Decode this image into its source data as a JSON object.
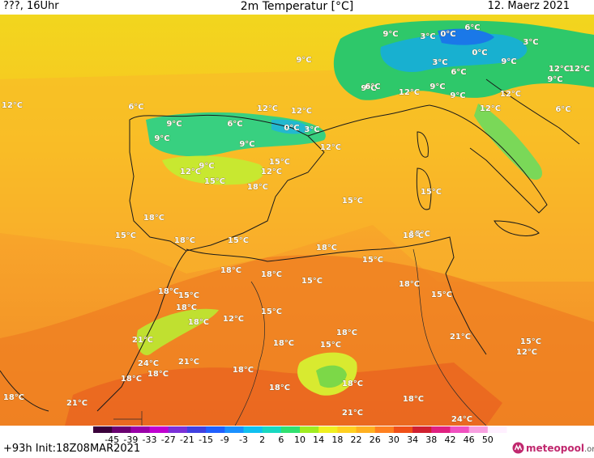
{
  "header": {
    "left": "???, 16Uhr",
    "title": "2m Temperatur [°C]",
    "date": "12. Maerz 2021"
  },
  "footer": {
    "run": "+93h  Init:18Z08MAR2021",
    "brand": "meteopool",
    "brand_domain": ".org"
  },
  "scale": {
    "ticks": [
      "-45",
      "-39",
      "-33",
      "-27",
      "-21",
      "-15",
      "-9",
      "-3",
      "2",
      "6",
      "10",
      "14",
      "18",
      "22",
      "26",
      "30",
      "34",
      "38",
      "42",
      "46",
      "50"
    ],
    "colors": [
      "#3a003a",
      "#6a0070",
      "#9a00a8",
      "#c000d0",
      "#7a30d8",
      "#4040e0",
      "#2060ff",
      "#1a90ff",
      "#10c0f0",
      "#18d8c0",
      "#30e070",
      "#a0ec20",
      "#f0f020",
      "#ffd020",
      "#ffb020",
      "#ff8020",
      "#f05018",
      "#d02030",
      "#e02080",
      "#f050c0",
      "#f8a0e0",
      "#fff0ff"
    ]
  },
  "labels": [
    {
      "text": "9°C"
    },
    {
      "text": "3°C"
    },
    {
      "text": "0°C"
    },
    {
      "text": "6°C"
    },
    {
      "text": "3°C"
    },
    {
      "text": "9°C"
    },
    {
      "text": "0°C"
    },
    {
      "text": "3°C"
    },
    {
      "text": "6°C"
    },
    {
      "text": "9°C"
    },
    {
      "text": "9°C"
    },
    {
      "text": "6°C"
    },
    {
      "text": "9°C"
    },
    {
      "text": "9°C"
    },
    {
      "text": "12°C"
    },
    {
      "text": "9°C"
    },
    {
      "text": "12°C"
    },
    {
      "text": "12°C"
    },
    {
      "text": "12°C"
    },
    {
      "text": "6°C"
    },
    {
      "text": "12°C"
    },
    {
      "text": "12°C"
    },
    {
      "text": "12°C"
    },
    {
      "text": "6°C"
    },
    {
      "text": "9°C"
    },
    {
      "text": "6°C"
    },
    {
      "text": "0°C"
    },
    {
      "text": "3°C"
    },
    {
      "text": "9°C"
    },
    {
      "text": "9°C"
    },
    {
      "text": "12°C"
    },
    {
      "text": "12°C"
    },
    {
      "text": "9°C"
    },
    {
      "text": "15°C"
    },
    {
      "text": "12°C"
    },
    {
      "text": "15°C"
    },
    {
      "text": "18°C"
    },
    {
      "text": "12°C"
    },
    {
      "text": "15°C"
    },
    {
      "text": "15°C"
    },
    {
      "text": "18°C"
    },
    {
      "text": "15°C"
    },
    {
      "text": "18°C"
    },
    {
      "text": "15°C"
    },
    {
      "text": "15°C"
    },
    {
      "text": "18°C"
    },
    {
      "text": "18°C"
    },
    {
      "text": "18°C"
    },
    {
      "text": "18°C"
    },
    {
      "text": "15°C"
    },
    {
      "text": "15°C"
    },
    {
      "text": "18°C"
    },
    {
      "text": "15°C"
    },
    {
      "text": "18°C"
    },
    {
      "text": "15°C"
    },
    {
      "text": "18°C"
    },
    {
      "text": "12°C"
    },
    {
      "text": "15°C"
    },
    {
      "text": "18°C"
    },
    {
      "text": "18°C"
    },
    {
      "text": "21°C"
    },
    {
      "text": "18°C"
    },
    {
      "text": "12°C"
    },
    {
      "text": "15°C"
    },
    {
      "text": "15°C"
    },
    {
      "text": "18°C"
    },
    {
      "text": "21°C"
    },
    {
      "text": "24°C"
    },
    {
      "text": "18°C"
    },
    {
      "text": "21°C"
    },
    {
      "text": "18°C"
    },
    {
      "text": "18°C"
    },
    {
      "text": "18°C"
    },
    {
      "text": "18°C"
    },
    {
      "text": "21°C"
    },
    {
      "text": "21°C"
    },
    {
      "text": "18°C"
    },
    {
      "text": "24°C"
    }
  ]
}
